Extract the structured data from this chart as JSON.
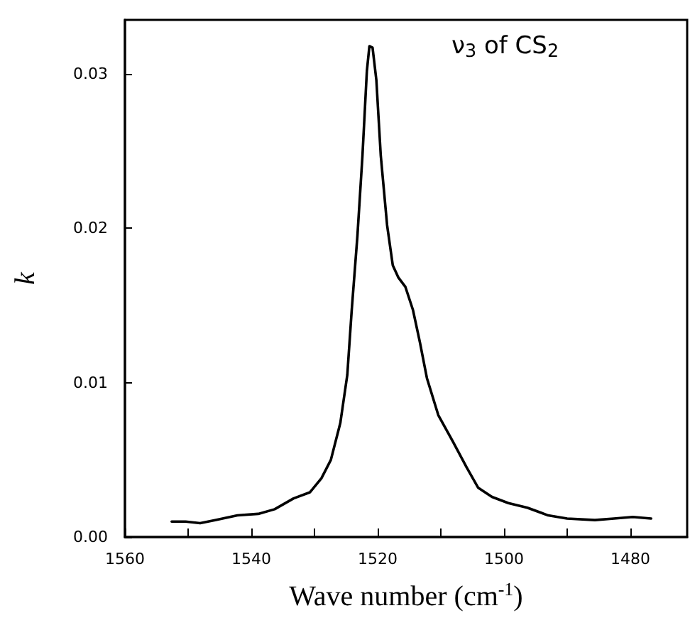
{
  "chart_data": {
    "type": "line",
    "xlabel": "Wave number (cm$^{-1}$)",
    "ylabel": "k",
    "annotations": [
      "ν$_{3}$ of CS$_{2}$"
    ],
    "x": [
      1552.6,
      1550.4,
      1548.1,
      1545.6,
      1542.2,
      1538.9,
      1536.3,
      1533.3,
      1530.7,
      1528.9,
      1527.4,
      1525.9,
      1524.8,
      1524.1,
      1523.2,
      1522.4,
      1521.7,
      1521.3,
      1520.8,
      1520.2,
      1519.5,
      1518.5,
      1517.6,
      1516.7,
      1515.6,
      1514.4,
      1513.3,
      1512.2,
      1510.4,
      1508.1,
      1505.9,
      1504.1,
      1501.9,
      1499.3,
      1496.3,
      1493.0,
      1490.0,
      1485.6,
      1482.6,
      1479.6,
      1476.7
    ],
    "series": [
      {
        "color": "#000000",
        "values": [
          0.001,
          0.001,
          0.0009,
          0.0011,
          0.0014,
          0.0015,
          0.0018,
          0.0025,
          0.0029,
          0.0038,
          0.005,
          0.0074,
          0.0105,
          0.0147,
          0.0195,
          0.0247,
          0.0302,
          0.0318,
          0.0317,
          0.0296,
          0.0247,
          0.0202,
          0.0176,
          0.0168,
          0.0162,
          0.0147,
          0.0126,
          0.0103,
          0.0079,
          0.0062,
          0.0045,
          0.0032,
          0.0026,
          0.0022,
          0.0019,
          0.0014,
          0.0012,
          0.0011,
          0.0012,
          0.0013,
          0.0012
        ]
      }
    ],
    "xlim": [
      1560,
      1471
    ],
    "xticks": [
      1560,
      {
        "value": 1550,
        "label": null
      },
      1540,
      {
        "value": 1530,
        "label": null
      },
      1520,
      {
        "value": 1510,
        "label": null
      },
      1500,
      {
        "value": 1490,
        "label": null
      },
      1480
    ],
    "ylim": [
      0,
      0.0335
    ],
    "yticks": [
      {
        "value": 0,
        "label": "0.00"
      },
      0.01,
      0.02,
      0.03
    ],
    "grid": false,
    "marker": "none",
    "line_style": "solid"
  }
}
